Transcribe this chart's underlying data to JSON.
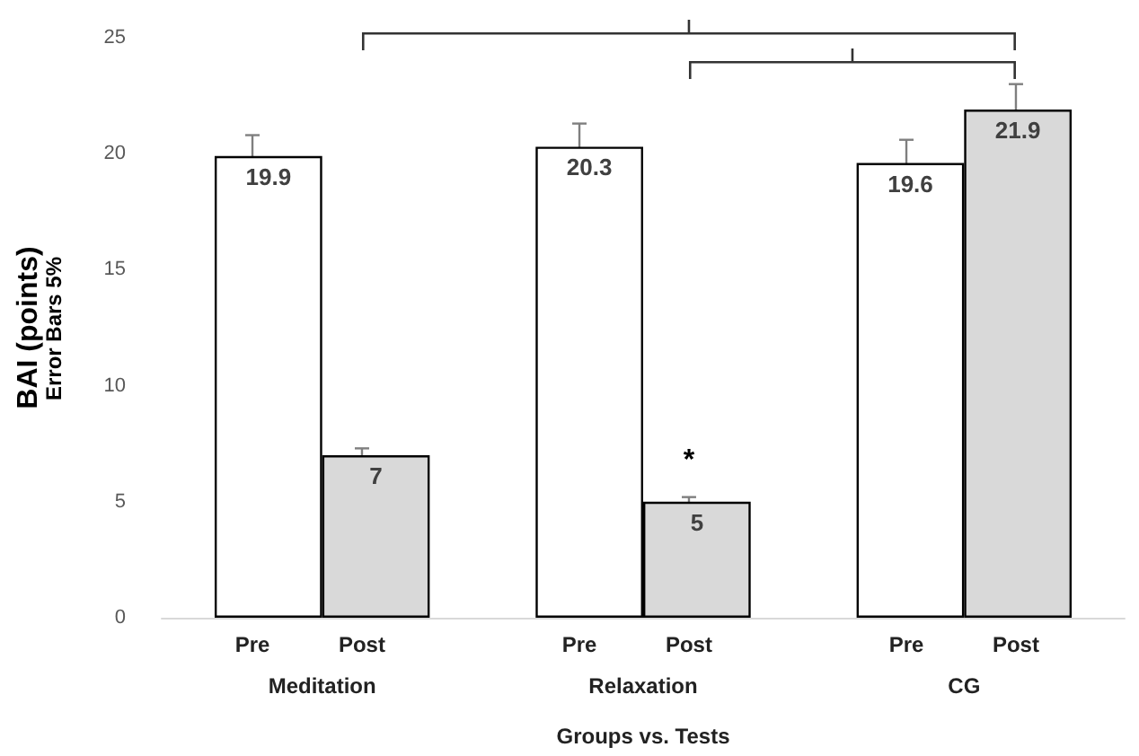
{
  "chart_data": {
    "type": "bar",
    "xlabel": "Groups vs. Tests",
    "ylabel": "BAI (points)",
    "categories": [
      "Meditation",
      "Relaxation",
      "CG"
    ],
    "series": [
      {
        "name": "Pre",
        "color": "#ffffff",
        "values": [
          19.9,
          20.3,
          19.6
        ],
        "errors": [
          0.9,
          1.0,
          1.0
        ]
      },
      {
        "name": "Post",
        "color": "#d9d9d9",
        "values": [
          7,
          5,
          21.9
        ],
        "errors": [
          0.3,
          0.2,
          1.1
        ]
      }
    ],
    "data_labels": true,
    "ylim": [
      0,
      25
    ],
    "yticks": [
      0,
      5,
      10,
      15,
      20,
      25
    ],
    "grid": false,
    "legend": false,
    "annotations": [
      "Error Bars 5%",
      {
        "text": "*",
        "x": "Relaxation",
        "y": 6.9
      }
    ]
  }
}
